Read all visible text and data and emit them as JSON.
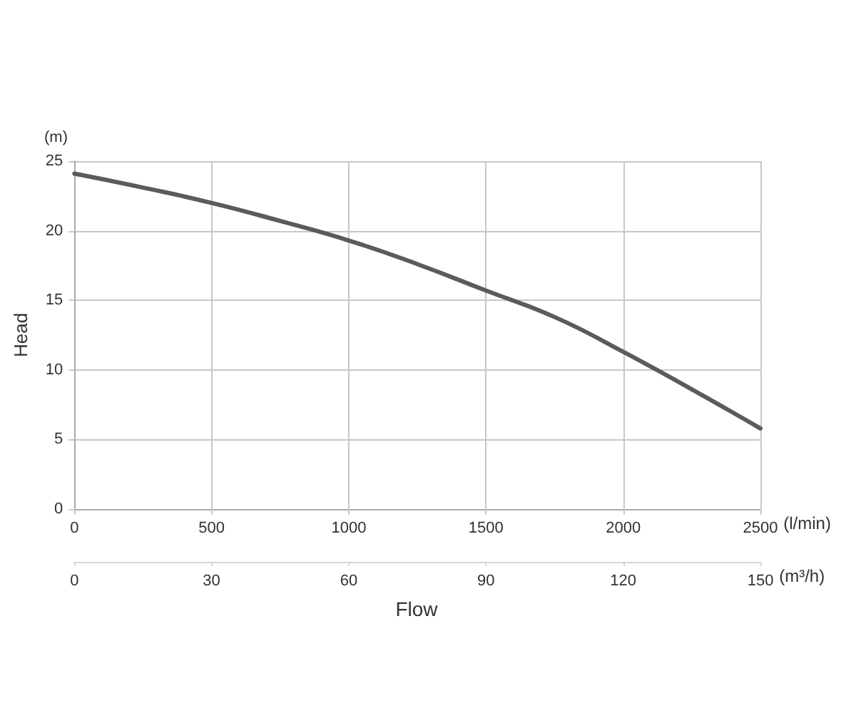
{
  "chart_data": {
    "type": "line",
    "xlabel": "(l/min)",
    "x2label": "(m³/h)",
    "ylabel": "Head",
    "annotations": [
      "(m)",
      "Flow"
    ],
    "x": [
      0,
      250,
      500,
      750,
      1000,
      1250,
      1500,
      1750,
      2000,
      2250,
      2500
    ],
    "series": [
      {
        "color": "#5b5b5b",
        "values": [
          24.1,
          23.1,
          22.0,
          20.7,
          19.3,
          17.6,
          15.7,
          13.8,
          11.3,
          8.6,
          5.8
        ]
      }
    ],
    "xlim": [
      0,
      2500
    ],
    "xticks": [
      0,
      500,
      1000,
      1500,
      2000,
      2500
    ],
    "x2lim": [
      0,
      150
    ],
    "x2ticks": [
      0,
      30,
      60,
      90,
      120,
      150
    ],
    "ylim": [
      0,
      25
    ],
    "yticks": [
      0,
      5,
      10,
      15,
      20,
      25
    ],
    "grid": true
  }
}
